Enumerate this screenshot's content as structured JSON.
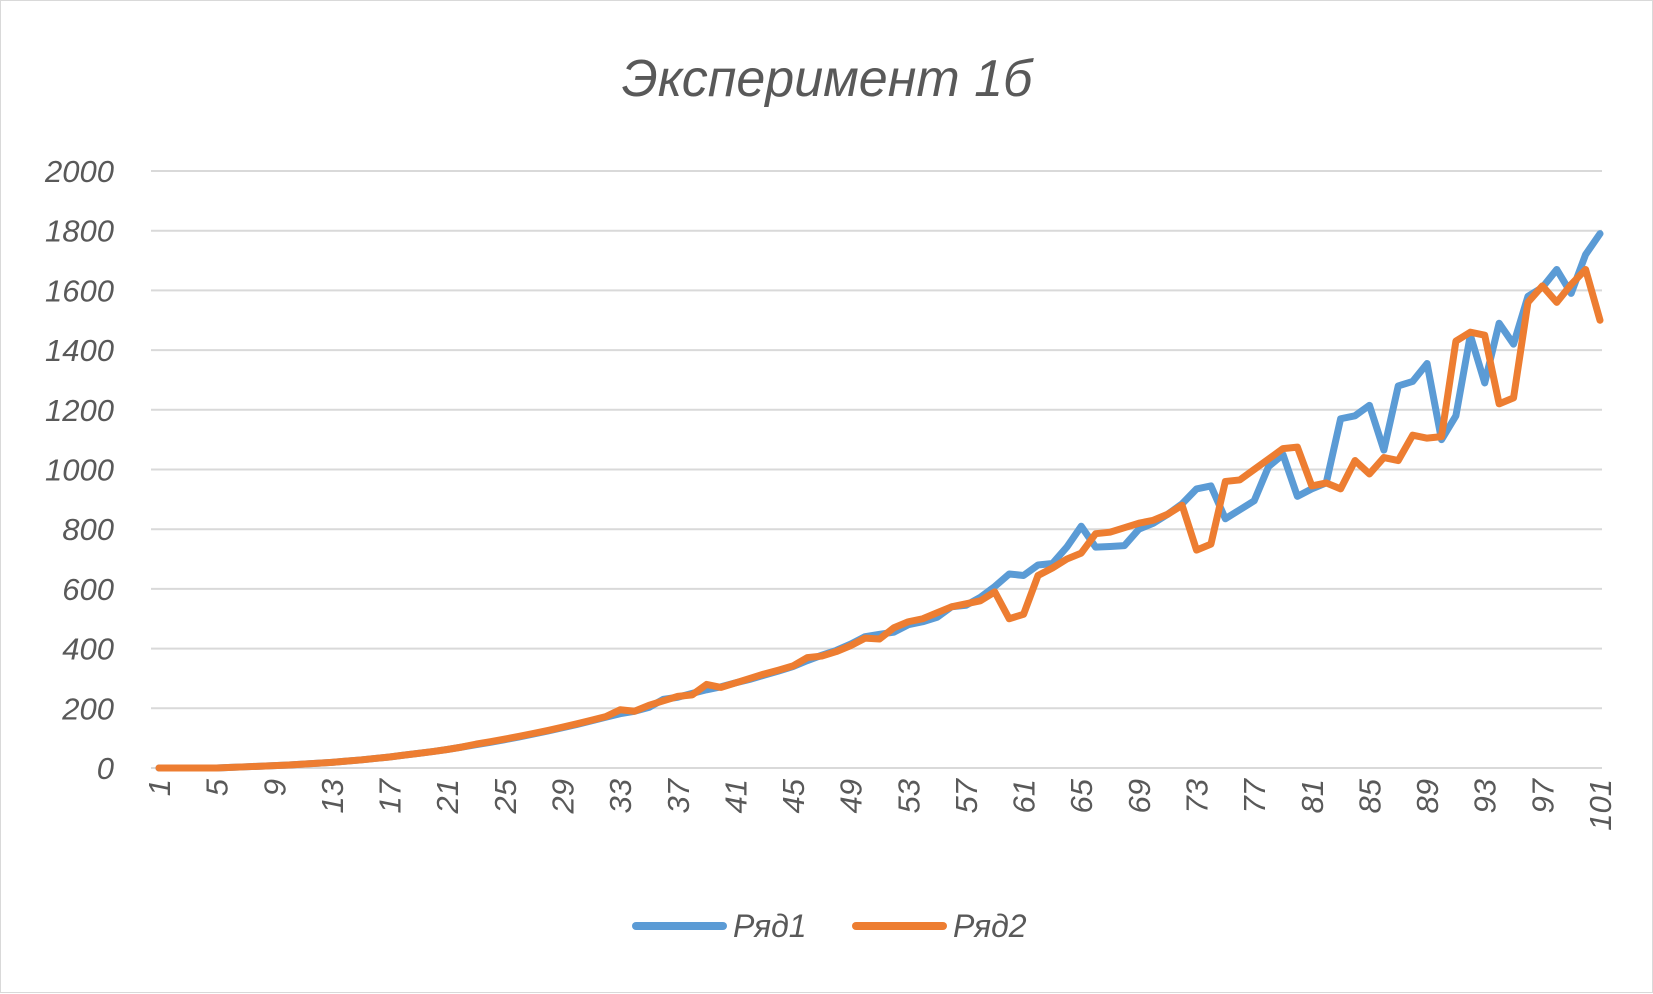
{
  "chart_data": {
    "type": "line",
    "title": "Эксперимент 1б",
    "xlabel": "",
    "ylabel": "",
    "ylim": [
      0,
      2000
    ],
    "yticks": [
      "0",
      "200",
      "400",
      "600",
      "800",
      "1000",
      "1200",
      "1400",
      "1600",
      "1800",
      "2000"
    ],
    "xtick_labels": [
      "1",
      "5",
      "9",
      "13",
      "17",
      "21",
      "25",
      "29",
      "33",
      "37",
      "41",
      "45",
      "49",
      "53",
      "57",
      "61",
      "65",
      "69",
      "73",
      "77",
      "81",
      "85",
      "89",
      "93",
      "97",
      "101"
    ],
    "x": [
      1,
      2,
      3,
      4,
      5,
      6,
      7,
      8,
      9,
      10,
      11,
      12,
      13,
      14,
      15,
      16,
      17,
      18,
      19,
      20,
      21,
      22,
      23,
      24,
      25,
      26,
      27,
      28,
      29,
      30,
      31,
      32,
      33,
      34,
      35,
      36,
      37,
      38,
      39,
      40,
      41,
      42,
      43,
      44,
      45,
      46,
      47,
      48,
      49,
      50,
      51,
      52,
      53,
      54,
      55,
      56,
      57,
      58,
      59,
      60,
      61,
      62,
      63,
      64,
      65,
      66,
      67,
      68,
      69,
      70,
      71,
      72,
      73,
      74,
      75,
      76,
      77,
      78,
      79,
      80,
      81,
      82,
      83,
      84,
      85,
      86,
      87,
      88,
      89,
      90,
      91,
      92,
      93,
      94,
      95,
      96,
      97,
      98,
      99,
      100,
      101
    ],
    "grid": true,
    "legend_position": "bottom",
    "series": [
      {
        "name": "Ряд1",
        "color": "#5B9BD5",
        "values": [
          0,
          0,
          0,
          0,
          0,
          2,
          4,
          6,
          8,
          10,
          13,
          16,
          19,
          23,
          27,
          32,
          37,
          43,
          49,
          55,
          62,
          70,
          78,
          86,
          95,
          104,
          114,
          124,
          135,
          146,
          158,
          170,
          182,
          190,
          203,
          230,
          237,
          250,
          262,
          272,
          285,
          297,
          311,
          325,
          340,
          360,
          378,
          394,
          415,
          440,
          448,
          455,
          480,
          490,
          505,
          540,
          545,
          572,
          608,
          650,
          645,
          680,
          685,
          740,
          810,
          740,
          742,
          745,
          800,
          820,
          850,
          885,
          935,
          945,
          835,
          865,
          895,
          1010,
          1050,
          910,
          935,
          955,
          1170,
          1180,
          1215,
          1065,
          1280,
          1295,
          1355,
          1100,
          1180,
          1450,
          1290,
          1490,
          1420,
          1580,
          1610,
          1670,
          1590,
          1720,
          1790
        ]
      },
      {
        "name": "Ряд2",
        "color": "#ED7D31",
        "values": [
          0,
          0,
          0,
          0,
          0,
          2,
          4,
          6,
          8,
          10,
          13,
          16,
          19,
          23,
          27,
          32,
          37,
          43,
          49,
          55,
          62,
          70,
          80,
          88,
          97,
          106,
          116,
          126,
          137,
          148,
          160,
          172,
          195,
          190,
          210,
          225,
          240,
          245,
          280,
          270,
          285,
          300,
          315,
          328,
          342,
          370,
          375,
          390,
          410,
          435,
          432,
          470,
          490,
          500,
          520,
          540,
          550,
          560,
          590,
          500,
          515,
          645,
          670,
          700,
          720,
          785,
          790,
          805,
          820,
          830,
          850,
          880,
          730,
          750,
          960,
          965,
          1000,
          1035,
          1070,
          1075,
          945,
          955,
          935,
          1030,
          985,
          1040,
          1030,
          1115,
          1105,
          1110,
          1430,
          1460,
          1450,
          1220,
          1240,
          1560,
          1615,
          1560,
          1620,
          1670,
          1500
        ]
      }
    ]
  }
}
